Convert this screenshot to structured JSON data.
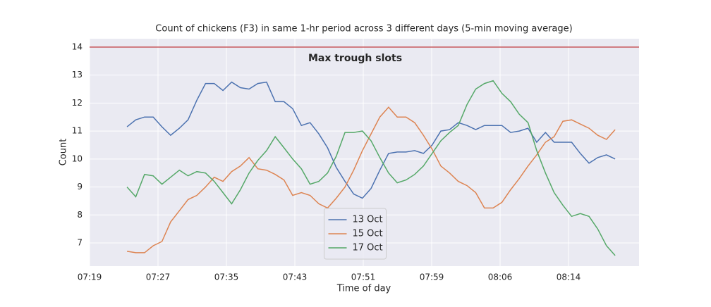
{
  "chart_data": {
    "type": "line",
    "title": "Count of chickens (F3) in same 1-hr period across 3 different days (5-min moving average)",
    "x_label": "Time of day",
    "y_label": "Count",
    "x": [
      23.6,
      24.6,
      25.6,
      26.6,
      27.6,
      28.6,
      29.6,
      30.6,
      31.6,
      32.6,
      33.6,
      34.6,
      35.6,
      36.6,
      37.6,
      38.6,
      39.6,
      40.6,
      41.6,
      42.6,
      43.6,
      44.6,
      45.6,
      46.6,
      47.6,
      48.6,
      49.6,
      50.6,
      51.6,
      52.6,
      53.6,
      54.6,
      55.6,
      56.6,
      57.6,
      58.6,
      59.6,
      60.6,
      61.6,
      62.6,
      63.6,
      64.6,
      65.6,
      66.6,
      67.6,
      68.6,
      69.6,
      70.6,
      71.6,
      72.6,
      73.6,
      74.6,
      75.6,
      76.6,
      77.6,
      78.6,
      79.6
    ],
    "series": [
      {
        "name": "13 Oct",
        "color": "#4c72b0",
        "values": [
          11.15,
          11.4,
          11.5,
          11.5,
          11.15,
          10.85,
          11.1,
          11.4,
          12.1,
          12.7,
          12.7,
          12.45,
          12.75,
          12.55,
          12.5,
          12.7,
          12.75,
          12.05,
          12.05,
          11.8,
          11.2,
          11.3,
          10.9,
          10.4,
          9.7,
          9.2,
          8.75,
          8.6,
          8.95,
          9.6,
          10.2,
          10.25,
          10.25,
          10.3,
          10.2,
          10.5,
          11.0,
          11.05,
          11.3,
          11.2,
          11.05,
          11.2,
          11.2,
          11.2,
          10.95,
          11.0,
          11.1,
          10.6,
          10.95,
          10.6,
          10.6,
          10.6,
          10.2,
          9.85,
          10.05,
          10.15,
          10.0
        ]
      },
      {
        "name": "15 Oct",
        "color": "#dd8452",
        "values": [
          6.7,
          6.65,
          6.65,
          6.9,
          7.05,
          7.75,
          8.15,
          8.55,
          8.7,
          9.0,
          9.35,
          9.2,
          9.55,
          9.75,
          10.05,
          9.65,
          9.6,
          9.45,
          9.25,
          8.7,
          8.8,
          8.7,
          8.4,
          8.25,
          8.6,
          9.0,
          9.6,
          10.3,
          10.9,
          11.5,
          11.85,
          11.5,
          11.5,
          11.3,
          10.85,
          10.35,
          9.75,
          9.5,
          9.2,
          9.05,
          8.8,
          8.25,
          8.25,
          8.45,
          8.9,
          9.3,
          9.75,
          10.15,
          10.6,
          10.8,
          11.35,
          11.4,
          11.25,
          11.1,
          10.85,
          10.7,
          11.05
        ]
      },
      {
        "name": "17 Oct",
        "color": "#55a868",
        "values": [
          9.0,
          8.65,
          9.45,
          9.4,
          9.1,
          9.35,
          9.6,
          9.4,
          9.55,
          9.5,
          9.2,
          8.8,
          8.4,
          8.9,
          9.5,
          9.95,
          10.3,
          10.8,
          10.4,
          10.0,
          9.65,
          9.1,
          9.2,
          9.5,
          10.1,
          10.95,
          10.95,
          11.0,
          10.65,
          10.05,
          9.5,
          9.15,
          9.25,
          9.45,
          9.75,
          10.2,
          10.65,
          10.95,
          11.2,
          11.95,
          12.5,
          12.7,
          12.8,
          12.35,
          12.05,
          11.6,
          11.3,
          10.3,
          9.5,
          8.8,
          8.35,
          7.95,
          8.05,
          7.95,
          7.5,
          6.9,
          6.55
        ]
      }
    ],
    "hline": {
      "value": 14,
      "color": "#c44e52",
      "label": "Max trough slots"
    },
    "xlim": [
      19.3,
      82.34
    ],
    "ylim": [
      6.17,
      14.3
    ],
    "xticks": [
      {
        "value": 19.3,
        "label": "07:19"
      },
      {
        "value": 27.15,
        "label": "07:27"
      },
      {
        "value": 35.0,
        "label": "07:35"
      },
      {
        "value": 42.85,
        "label": "07:43"
      },
      {
        "value": 50.7,
        "label": "07:51"
      },
      {
        "value": 58.55,
        "label": "07:59"
      },
      {
        "value": 66.4,
        "label": "08:06"
      },
      {
        "value": 74.25,
        "label": "08:14"
      }
    ],
    "yticks": [
      7,
      8,
      9,
      10,
      11,
      12,
      13,
      14
    ],
    "grid": true,
    "legend": "lower center"
  }
}
